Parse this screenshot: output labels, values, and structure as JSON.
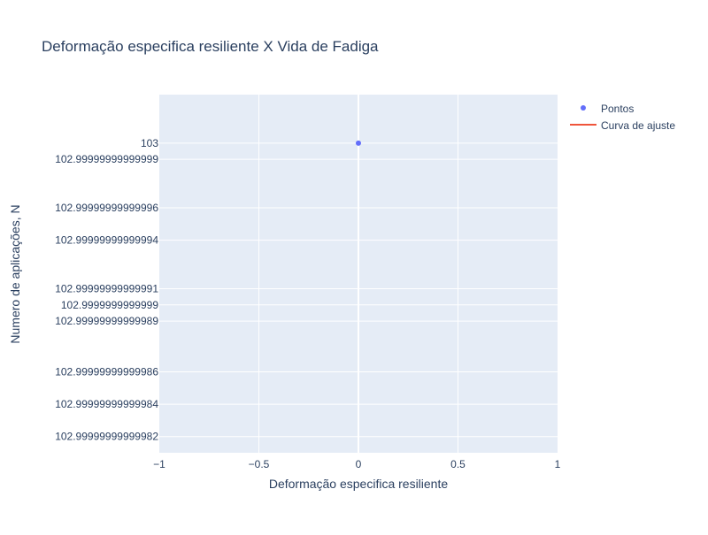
{
  "chart_data": {
    "type": "scatter",
    "title": "Deformação especifica resiliente X Vida de Fadiga",
    "xlabel": "Deformação especifica resiliente",
    "ylabel": "Numero de aplicações, N",
    "xlim": [
      -1,
      1
    ],
    "ylim": [
      102.9999999999981,
      103.0000000000003
    ],
    "grid": true,
    "legend_position": "top-right",
    "x_ticks": [
      {
        "value": -1,
        "label": "−1"
      },
      {
        "value": -0.5,
        "label": "−0.5"
      },
      {
        "value": 0,
        "label": "0"
      },
      {
        "value": 0.5,
        "label": "0.5"
      },
      {
        "value": 1,
        "label": "1"
      }
    ],
    "y_ticks": [
      {
        "value": 103.0,
        "label": "103"
      },
      {
        "value": 102.9999999999999,
        "label": "102.99999999999999"
      },
      {
        "value": 102.9999999999996,
        "label": "102.99999999999996"
      },
      {
        "value": 102.9999999999994,
        "label": "102.99999999999994"
      },
      {
        "value": 102.9999999999991,
        "label": "102.99999999999991"
      },
      {
        "value": 102.999999999999,
        "label": "102.9999999999999"
      },
      {
        "value": 102.9999999999989,
        "label": "102.99999999999989"
      },
      {
        "value": 102.9999999999986,
        "label": "102.99999999999986"
      },
      {
        "value": 102.9999999999984,
        "label": "102.99999999999984"
      },
      {
        "value": 102.9999999999982,
        "label": "102.99999999999982"
      }
    ],
    "series": [
      {
        "name": "Pontos",
        "mode": "markers",
        "color": "#636efa",
        "x": [
          0
        ],
        "y": [
          103
        ]
      },
      {
        "name": "Curva de ajuste",
        "mode": "lines",
        "color": "#ef553b",
        "x": [],
        "y": []
      }
    ]
  }
}
